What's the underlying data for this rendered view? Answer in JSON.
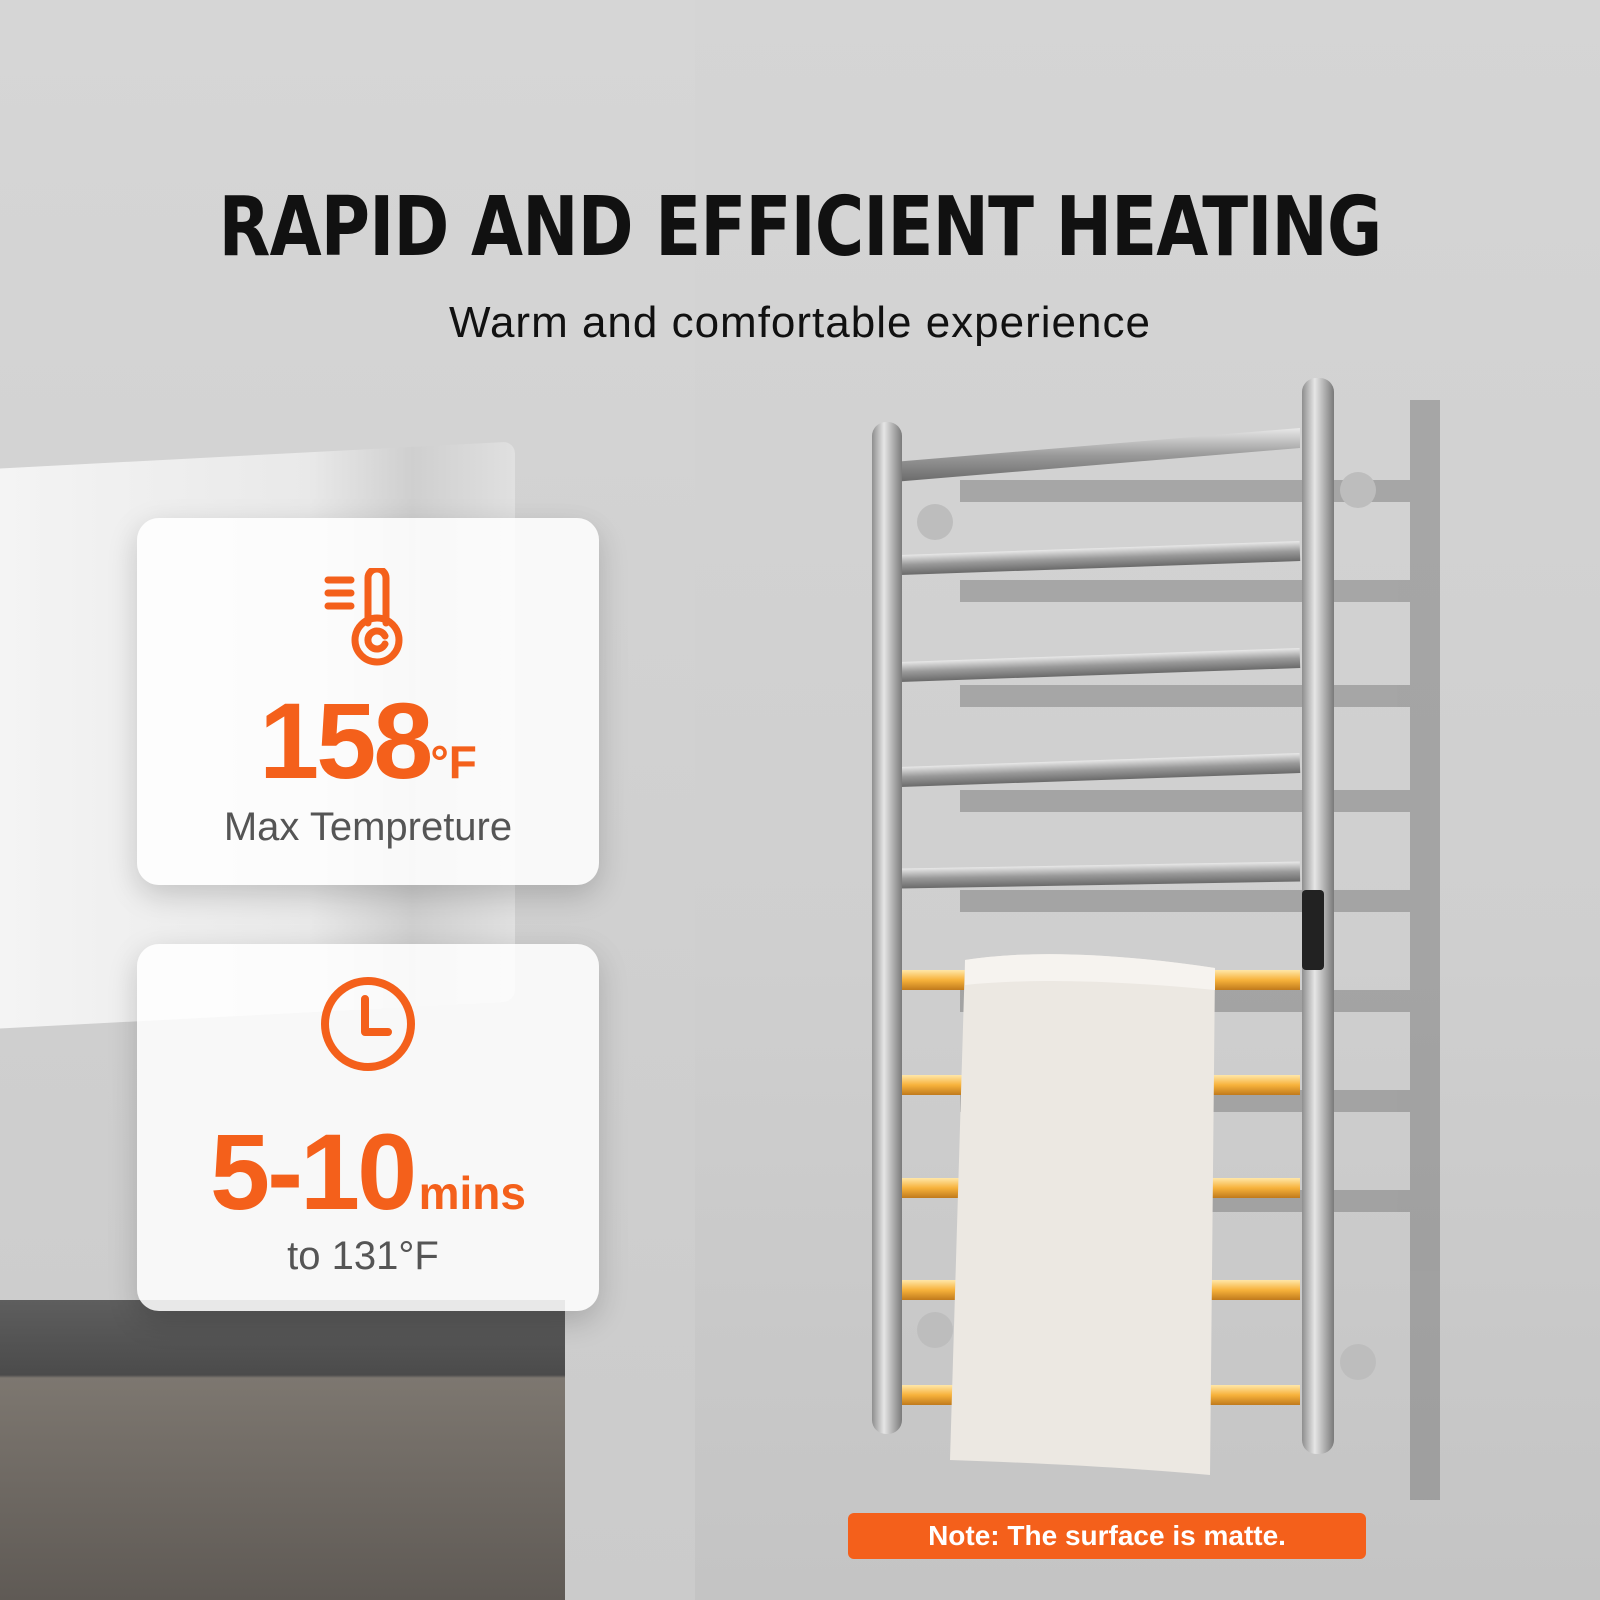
{
  "header": {
    "title": "RAPID AND EFFICIENT HEATING",
    "subtitle": "Warm and comfortable experience"
  },
  "features": [
    {
      "icon": "thermometer-icon",
      "value": "158",
      "unit": "°F",
      "caption": "Max Tempreture"
    },
    {
      "icon": "clock-icon",
      "value": "5-10",
      "unit": "mins",
      "caption": "to 131°F"
    }
  ],
  "note": "Note: The surface is matte.",
  "colors": {
    "accent": "#f4601b",
    "glow": "#f7b23b",
    "text": "#111111",
    "caption": "#555555"
  }
}
